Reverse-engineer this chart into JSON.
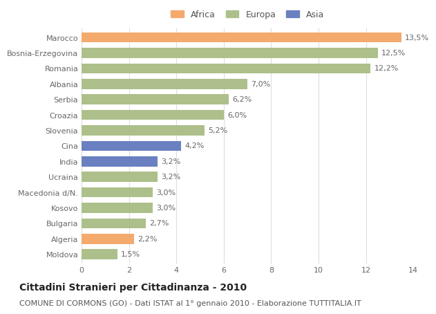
{
  "categories": [
    "Marocco",
    "Bosnia-Erzegovina",
    "Romania",
    "Albania",
    "Serbia",
    "Croazia",
    "Slovenia",
    "Cina",
    "India",
    "Ucraina",
    "Macedonia d/N.",
    "Kosovo",
    "Bulgaria",
    "Algeria",
    "Moldova"
  ],
  "values": [
    13.5,
    12.5,
    12.2,
    7.0,
    6.2,
    6.0,
    5.2,
    4.2,
    3.2,
    3.2,
    3.0,
    3.0,
    2.7,
    2.2,
    1.5
  ],
  "labels": [
    "13,5%",
    "12,5%",
    "12,2%",
    "7,0%",
    "6,2%",
    "6,0%",
    "5,2%",
    "4,2%",
    "3,2%",
    "3,2%",
    "3,0%",
    "3,0%",
    "2,7%",
    "2,2%",
    "1,5%"
  ],
  "continents": [
    "Africa",
    "Europa",
    "Europa",
    "Europa",
    "Europa",
    "Europa",
    "Europa",
    "Asia",
    "Asia",
    "Europa",
    "Europa",
    "Europa",
    "Europa",
    "Africa",
    "Europa"
  ],
  "colors": {
    "Africa": "#F4A96D",
    "Europa": "#ADBF8A",
    "Asia": "#6A80C0"
  },
  "xlim": [
    0,
    14
  ],
  "xticks": [
    0,
    2,
    4,
    6,
    8,
    10,
    12,
    14
  ],
  "title_bold": "Cittadini Stranieri per Cittadinanza - 2010",
  "subtitle": "COMUNE DI CORMONS (GO) - Dati ISTAT al 1° gennaio 2010 - Elaborazione TUTTITALIA.IT",
  "background_color": "#ffffff",
  "bar_height": 0.65,
  "grid_color": "#dddddd",
  "label_fontsize": 8.0,
  "tick_fontsize": 8.0,
  "title_fontsize": 10,
  "subtitle_fontsize": 8
}
